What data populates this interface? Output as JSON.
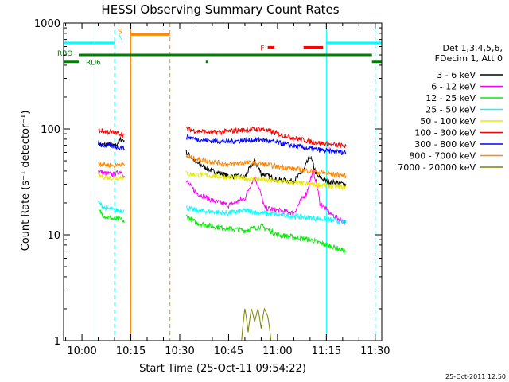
{
  "chart_data": {
    "type": "line",
    "title": "HESSI Observing Summary Count Rates",
    "xlabel": "Start Time (25-Oct-11 09:54:22)",
    "ylabel": "Count Rate (s⁻¹ detector⁻¹)",
    "yscale": "log",
    "ylim": [
      1,
      1000
    ],
    "xlim": [
      "09:54:22",
      "11:32"
    ],
    "x_ticks": [
      "10:00",
      "10:15",
      "10:30",
      "10:45",
      "11:00",
      "11:15",
      "11:30"
    ],
    "y_ticks": [
      "1",
      "10",
      "100",
      "1000"
    ],
    "legend_header": [
      "Det 1,3,4,5,6,",
      "FDecim 1, Att 0"
    ],
    "legend_position": "right",
    "footer_timestamp": "25-Oct-2011 12:50",
    "flag_labels": {
      "saa": "S",
      "night": "N",
      "flare": "F",
      "rbo": "RBO",
      "rd6": "RD6"
    },
    "series": [
      {
        "name": "3 - 6 keV",
        "color": "#000000",
        "segments": [
          {
            "times": [
              "10:05",
              "10:06",
              "10:08",
              "10:10",
              "10:12",
              "10:13"
            ],
            "values": [
              75,
              70,
              72,
              68,
              80,
              78
            ]
          },
          {
            "times": [
              "10:32",
              "10:35",
              "10:40",
              "10:45",
              "10:50",
              "10:53",
              "10:55",
              "11:00",
              "11:05",
              "11:08",
              "11:10",
              "11:12",
              "11:15",
              "11:18",
              "11:21"
            ],
            "values": [
              60,
              48,
              40,
              36,
              35,
              50,
              38,
              33,
              32,
              40,
              55,
              36,
              32,
              31,
              30
            ]
          }
        ]
      },
      {
        "name": "6 - 12 keV",
        "color": "#ff00ff",
        "segments": [
          {
            "times": [
              "10:05",
              "10:07",
              "10:10",
              "10:12",
              "10:13"
            ],
            "values": [
              40,
              38,
              37,
              40,
              36
            ]
          },
          {
            "times": [
              "10:32",
              "10:35",
              "10:40",
              "10:45",
              "10:50",
              "10:53",
              "10:56",
              "11:00",
              "11:05",
              "11:09",
              "11:11",
              "11:13",
              "11:16",
              "11:19",
              "11:21"
            ],
            "values": [
              32,
              25,
              21,
              19,
              22,
              35,
              18,
              17,
              16,
              25,
              40,
              20,
              16,
              14,
              13
            ]
          }
        ]
      },
      {
        "name": "12 - 25 keV",
        "color": "#00ee00",
        "segments": [
          {
            "times": [
              "10:05",
              "10:07",
              "10:10",
              "10:12",
              "10:13"
            ],
            "values": [
              17,
              15,
              14,
              14,
              13
            ]
          },
          {
            "times": [
              "10:32",
              "10:35",
              "10:40",
              "10:45",
              "10:50",
              "10:55",
              "11:00",
              "11:05",
              "11:10",
              "11:15",
              "11:18",
              "11:21"
            ],
            "values": [
              15,
              13,
              12,
              11.5,
              11,
              12,
              10,
              9.5,
              9,
              8,
              7.5,
              7
            ]
          }
        ]
      },
      {
        "name": "25 - 50 keV",
        "color": "#00ffff",
        "segments": [
          {
            "times": [
              "10:05",
              "10:07",
              "10:10",
              "10:12",
              "10:13"
            ],
            "values": [
              20,
              18,
              17,
              17,
              17
            ]
          },
          {
            "times": [
              "10:32",
              "10:35",
              "10:40",
              "10:45",
              "10:50",
              "10:55",
              "11:00",
              "11:05",
              "11:10",
              "11:15",
              "11:18",
              "11:21"
            ],
            "values": [
              18,
              17,
              16.5,
              16,
              17,
              16,
              15.5,
              15,
              14.5,
              14,
              13.5,
              13
            ]
          }
        ]
      },
      {
        "name": "50 - 100 keV",
        "color": "#e8e800",
        "segments": [
          {
            "times": [
              "10:05",
              "10:07",
              "10:10",
              "10:12",
              "10:13"
            ],
            "values": [
              36,
              35,
              34,
              35,
              34
            ]
          },
          {
            "times": [
              "10:32",
              "10:35",
              "10:40",
              "10:45",
              "10:50",
              "10:55",
              "11:00",
              "11:05",
              "11:10",
              "11:15",
              "11:18",
              "11:21"
            ],
            "values": [
              38,
              37,
              36,
              35,
              34,
              33,
              32,
              31,
              30,
              29,
              28.5,
              28
            ]
          }
        ]
      },
      {
        "name": "100 - 300 keV",
        "color": "#ff0000",
        "segments": [
          {
            "times": [
              "10:05",
              "10:07",
              "10:10",
              "10:12",
              "10:13"
            ],
            "values": [
              97,
              95,
              92,
              90,
              88
            ]
          },
          {
            "times": [
              "10:32",
              "10:35",
              "10:40",
              "10:45",
              "10:50",
              "10:55",
              "11:00",
              "11:05",
              "11:10",
              "11:15",
              "11:18",
              "11:21"
            ],
            "values": [
              100,
              96,
              92,
              95,
              98,
              100,
              90,
              82,
              76,
              72,
              70,
              69
            ]
          }
        ]
      },
      {
        "name": "300 - 800 keV",
        "color": "#0000ff",
        "segments": [
          {
            "times": [
              "10:05",
              "10:07",
              "10:10",
              "10:12",
              "10:13"
            ],
            "values": [
              72,
              70,
              68,
              67,
              65
            ]
          },
          {
            "times": [
              "10:32",
              "10:35",
              "10:40",
              "10:45",
              "10:50",
              "10:55",
              "11:00",
              "11:05",
              "11:10",
              "11:15",
              "11:18",
              "11:21"
            ],
            "values": [
              85,
              80,
              77,
              76,
              78,
              79,
              74,
              69,
              65,
              62,
              61,
              60
            ]
          }
        ]
      },
      {
        "name": "800 - 7000 keV",
        "color": "#ff8800",
        "segments": [
          {
            "times": [
              "10:05",
              "10:07",
              "10:10",
              "10:12",
              "10:13"
            ],
            "values": [
              48,
              46,
              45,
              47,
              45
            ]
          },
          {
            "times": [
              "10:32",
              "10:35",
              "10:40",
              "10:45",
              "10:50",
              "10:55",
              "11:00",
              "11:05",
              "11:10",
              "11:15",
              "11:18",
              "11:21"
            ],
            "values": [
              55,
              52,
              49,
              46,
              48,
              47,
              44,
              42,
              40,
              38,
              37,
              36
            ]
          }
        ]
      },
      {
        "name": "7000 - 20000 keV",
        "color": "#808000",
        "segments": [
          {
            "times": [
              "10:49",
              "10:50",
              "10:51",
              "10:52",
              "10:53",
              "10:54",
              "10:55",
              "10:56",
              "10:57",
              "10:58"
            ],
            "values": [
              1,
              2,
              1.2,
              2,
              1.5,
              2,
              1.3,
              2,
              1.7,
              1
            ]
          }
        ]
      }
    ],
    "vertical_lines": [
      {
        "time": "10:04",
        "color": "#00ffff",
        "style": "solid"
      },
      {
        "time": "10:10",
        "color": "#00ffff",
        "style": "dashed"
      },
      {
        "time": "10:15",
        "color": "#ff8800",
        "style": "solid"
      },
      {
        "time": "10:27",
        "color": "#ff8800",
        "style": "dashed"
      },
      {
        "time": "11:15",
        "color": "#00ffff",
        "style": "solid"
      },
      {
        "time": "11:30",
        "color": "#00ffff",
        "style": "dashed"
      }
    ],
    "flag_bars": [
      {
        "label_key": "night",
        "color": "#00ffff",
        "level": 650,
        "spans": [
          [
            "09:54:22",
            "10:10"
          ],
          [
            "11:15",
            "11:32"
          ]
        ]
      },
      {
        "label_key": "saa",
        "color": "#ff8800",
        "level": 780,
        "spans": [
          [
            "10:15",
            "10:27"
          ]
        ]
      },
      {
        "label_key": "flare",
        "color": "#ff0000",
        "level": 590,
        "spans": [
          [
            "10:57",
            "10:59"
          ],
          [
            "11:08",
            "11:14"
          ]
        ]
      },
      {
        "label_key": "rbo",
        "color": "#008000",
        "level": 500,
        "spans": [
          [
            "09:59",
            "11:29"
          ]
        ]
      },
      {
        "label_key": "rd6",
        "color": "#008000",
        "level": 430,
        "spans": [
          [
            "09:54:22",
            "09:59"
          ],
          [
            "10:38",
            "10:38:40"
          ],
          [
            "11:29",
            "11:32"
          ]
        ]
      }
    ]
  }
}
